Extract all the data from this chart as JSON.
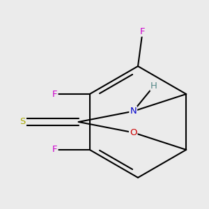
{
  "bg_color": "#ebebeb",
  "bond_color": "#000000",
  "bond_width": 1.5,
  "atom_colors": {
    "F": "#cc00cc",
    "N": "#0000cc",
    "O": "#cc0000",
    "S": "#aaaa00",
    "H": "#558888",
    "C": "#000000"
  },
  "font_size": 9.5
}
